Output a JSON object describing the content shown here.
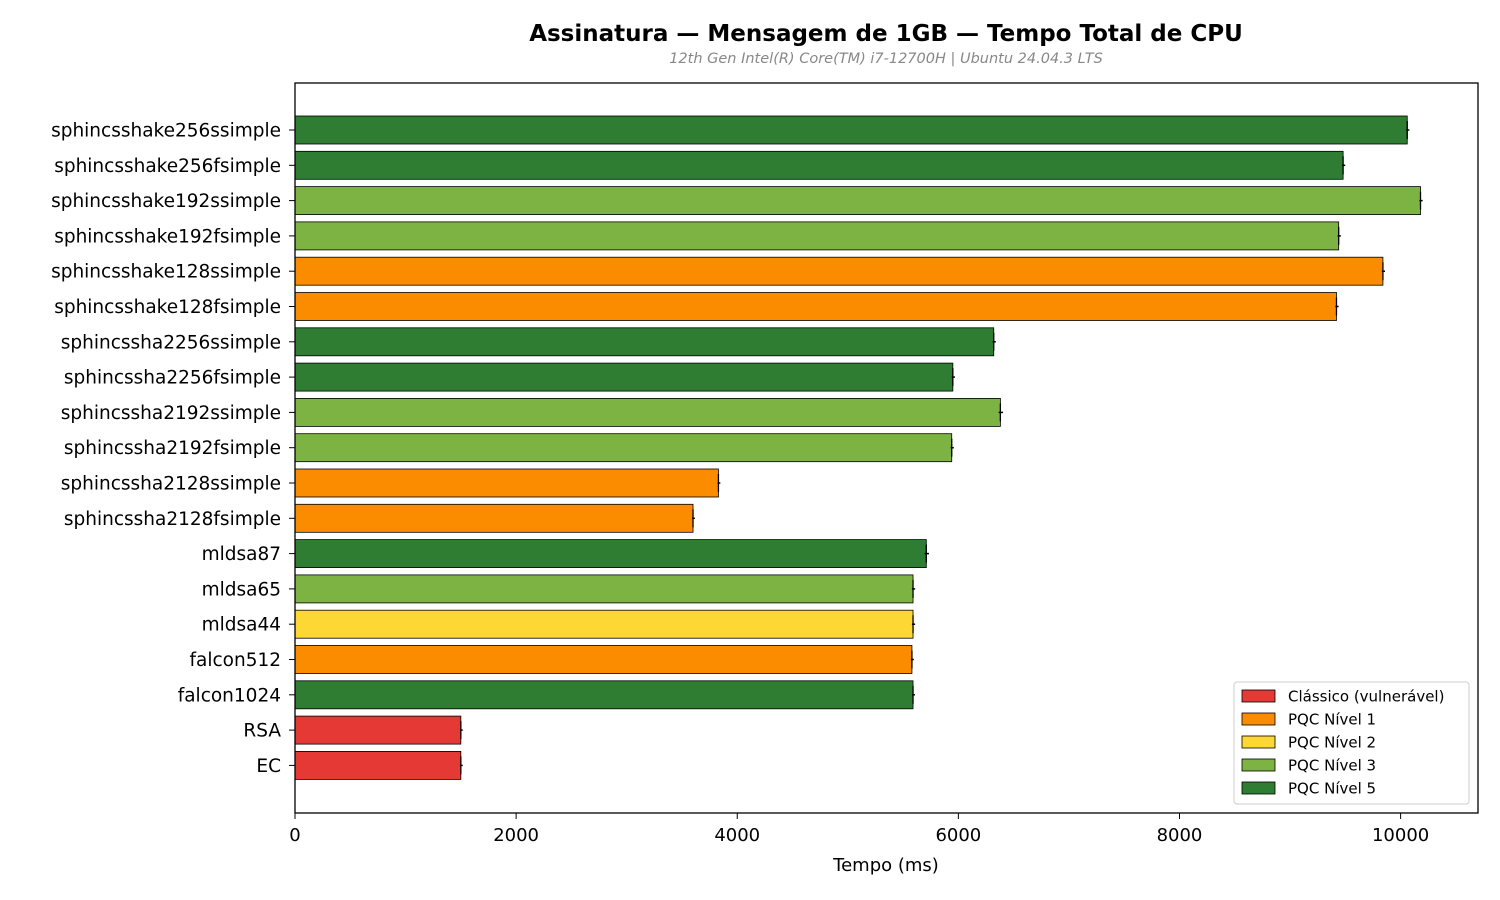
{
  "chart_data": {
    "type": "bar",
    "orientation": "horizontal",
    "title": "Assinatura — Mensagem de 1GB — Tempo Total de CPU",
    "subtitle": "12th Gen Intel(R) Core(TM) i7-12700H | Ubuntu 24.04.3 LTS",
    "xlabel": "Tempo (ms)",
    "ylabel": "",
    "xlim": [
      0,
      10700
    ],
    "xticks": [
      0,
      2000,
      4000,
      6000,
      8000,
      10000
    ],
    "grid": false,
    "legend_position": "bottom-right",
    "legend": [
      {
        "label": "Clássico (vulnerável)",
        "color": "#e53935"
      },
      {
        "label": "PQC Nível 1",
        "color": "#fb8c00"
      },
      {
        "label": "PQC Nível 2",
        "color": "#fdd835"
      },
      {
        "label": "PQC Nível 3",
        "color": "#7cb342"
      },
      {
        "label": "PQC Nível 5",
        "color": "#2e7d32"
      }
    ],
    "bars": [
      {
        "label": "sphincsshake256ssimple",
        "value": 10060,
        "error": 10,
        "level": 4
      },
      {
        "label": "sphincsshake256fsimple",
        "value": 9480,
        "error": 10,
        "level": 4
      },
      {
        "label": "sphincsshake192ssimple",
        "value": 10180,
        "error": 10,
        "level": 3
      },
      {
        "label": "sphincsshake192fsimple",
        "value": 9440,
        "error": 10,
        "level": 3
      },
      {
        "label": "sphincsshake128ssimple",
        "value": 9840,
        "error": 10,
        "level": 1
      },
      {
        "label": "sphincsshake128fsimple",
        "value": 9420,
        "error": 10,
        "level": 1
      },
      {
        "label": "sphincssha2256ssimple",
        "value": 6320,
        "error": 10,
        "level": 4
      },
      {
        "label": "sphincssha2256fsimple",
        "value": 5950,
        "error": 10,
        "level": 4
      },
      {
        "label": "sphincssha2192ssimple",
        "value": 6380,
        "error": 15,
        "level": 3
      },
      {
        "label": "sphincssha2192fsimple",
        "value": 5940,
        "error": 10,
        "level": 3
      },
      {
        "label": "sphincssha2128ssimple",
        "value": 3830,
        "error": 8,
        "level": 1
      },
      {
        "label": "sphincssha2128fsimple",
        "value": 3600,
        "error": 8,
        "level": 1
      },
      {
        "label": "mldsa87",
        "value": 5710,
        "error": 15,
        "level": 4
      },
      {
        "label": "mldsa65",
        "value": 5590,
        "error": 10,
        "level": 3
      },
      {
        "label": "mldsa44",
        "value": 5590,
        "error": 10,
        "level": 2
      },
      {
        "label": "falcon512",
        "value": 5580,
        "error": 8,
        "level": 1
      },
      {
        "label": "falcon1024",
        "value": 5590,
        "error": 8,
        "level": 4
      },
      {
        "label": "RSA",
        "value": 1500,
        "error": 8,
        "level": 0
      },
      {
        "label": "EC",
        "value": 1500,
        "error": 8,
        "level": 0
      }
    ]
  }
}
